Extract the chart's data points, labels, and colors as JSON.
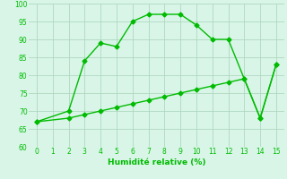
{
  "line1_x": [
    0,
    2,
    3,
    4,
    5,
    6,
    7,
    8,
    9,
    10,
    11,
    12,
    13,
    14,
    15
  ],
  "line1_y": [
    67,
    70,
    84,
    89,
    88,
    95,
    97,
    97,
    97,
    94,
    90,
    90,
    79,
    68,
    83
  ],
  "line2_x": [
    0,
    2,
    3,
    4,
    5,
    6,
    7,
    8,
    9,
    10,
    11,
    12,
    13,
    14,
    15
  ],
  "line2_y": [
    67,
    68,
    69,
    70,
    71,
    72,
    73,
    74,
    75,
    76,
    77,
    78,
    79,
    68,
    83
  ],
  "line_color": "#00bb00",
  "bg_color": "#d8f5e8",
  "grid_color": "#b0d8c0",
  "xlabel": "Humidité relative (%)",
  "xlim": [
    -0.5,
    15.5
  ],
  "ylim": [
    60,
    100
  ],
  "yticks": [
    60,
    65,
    70,
    75,
    80,
    85,
    90,
    95,
    100
  ],
  "xticks": [
    0,
    1,
    2,
    3,
    4,
    5,
    6,
    7,
    8,
    9,
    10,
    11,
    12,
    13,
    14,
    15
  ],
  "marker": "D",
  "markersize": 2.5,
  "linewidth": 1.0
}
